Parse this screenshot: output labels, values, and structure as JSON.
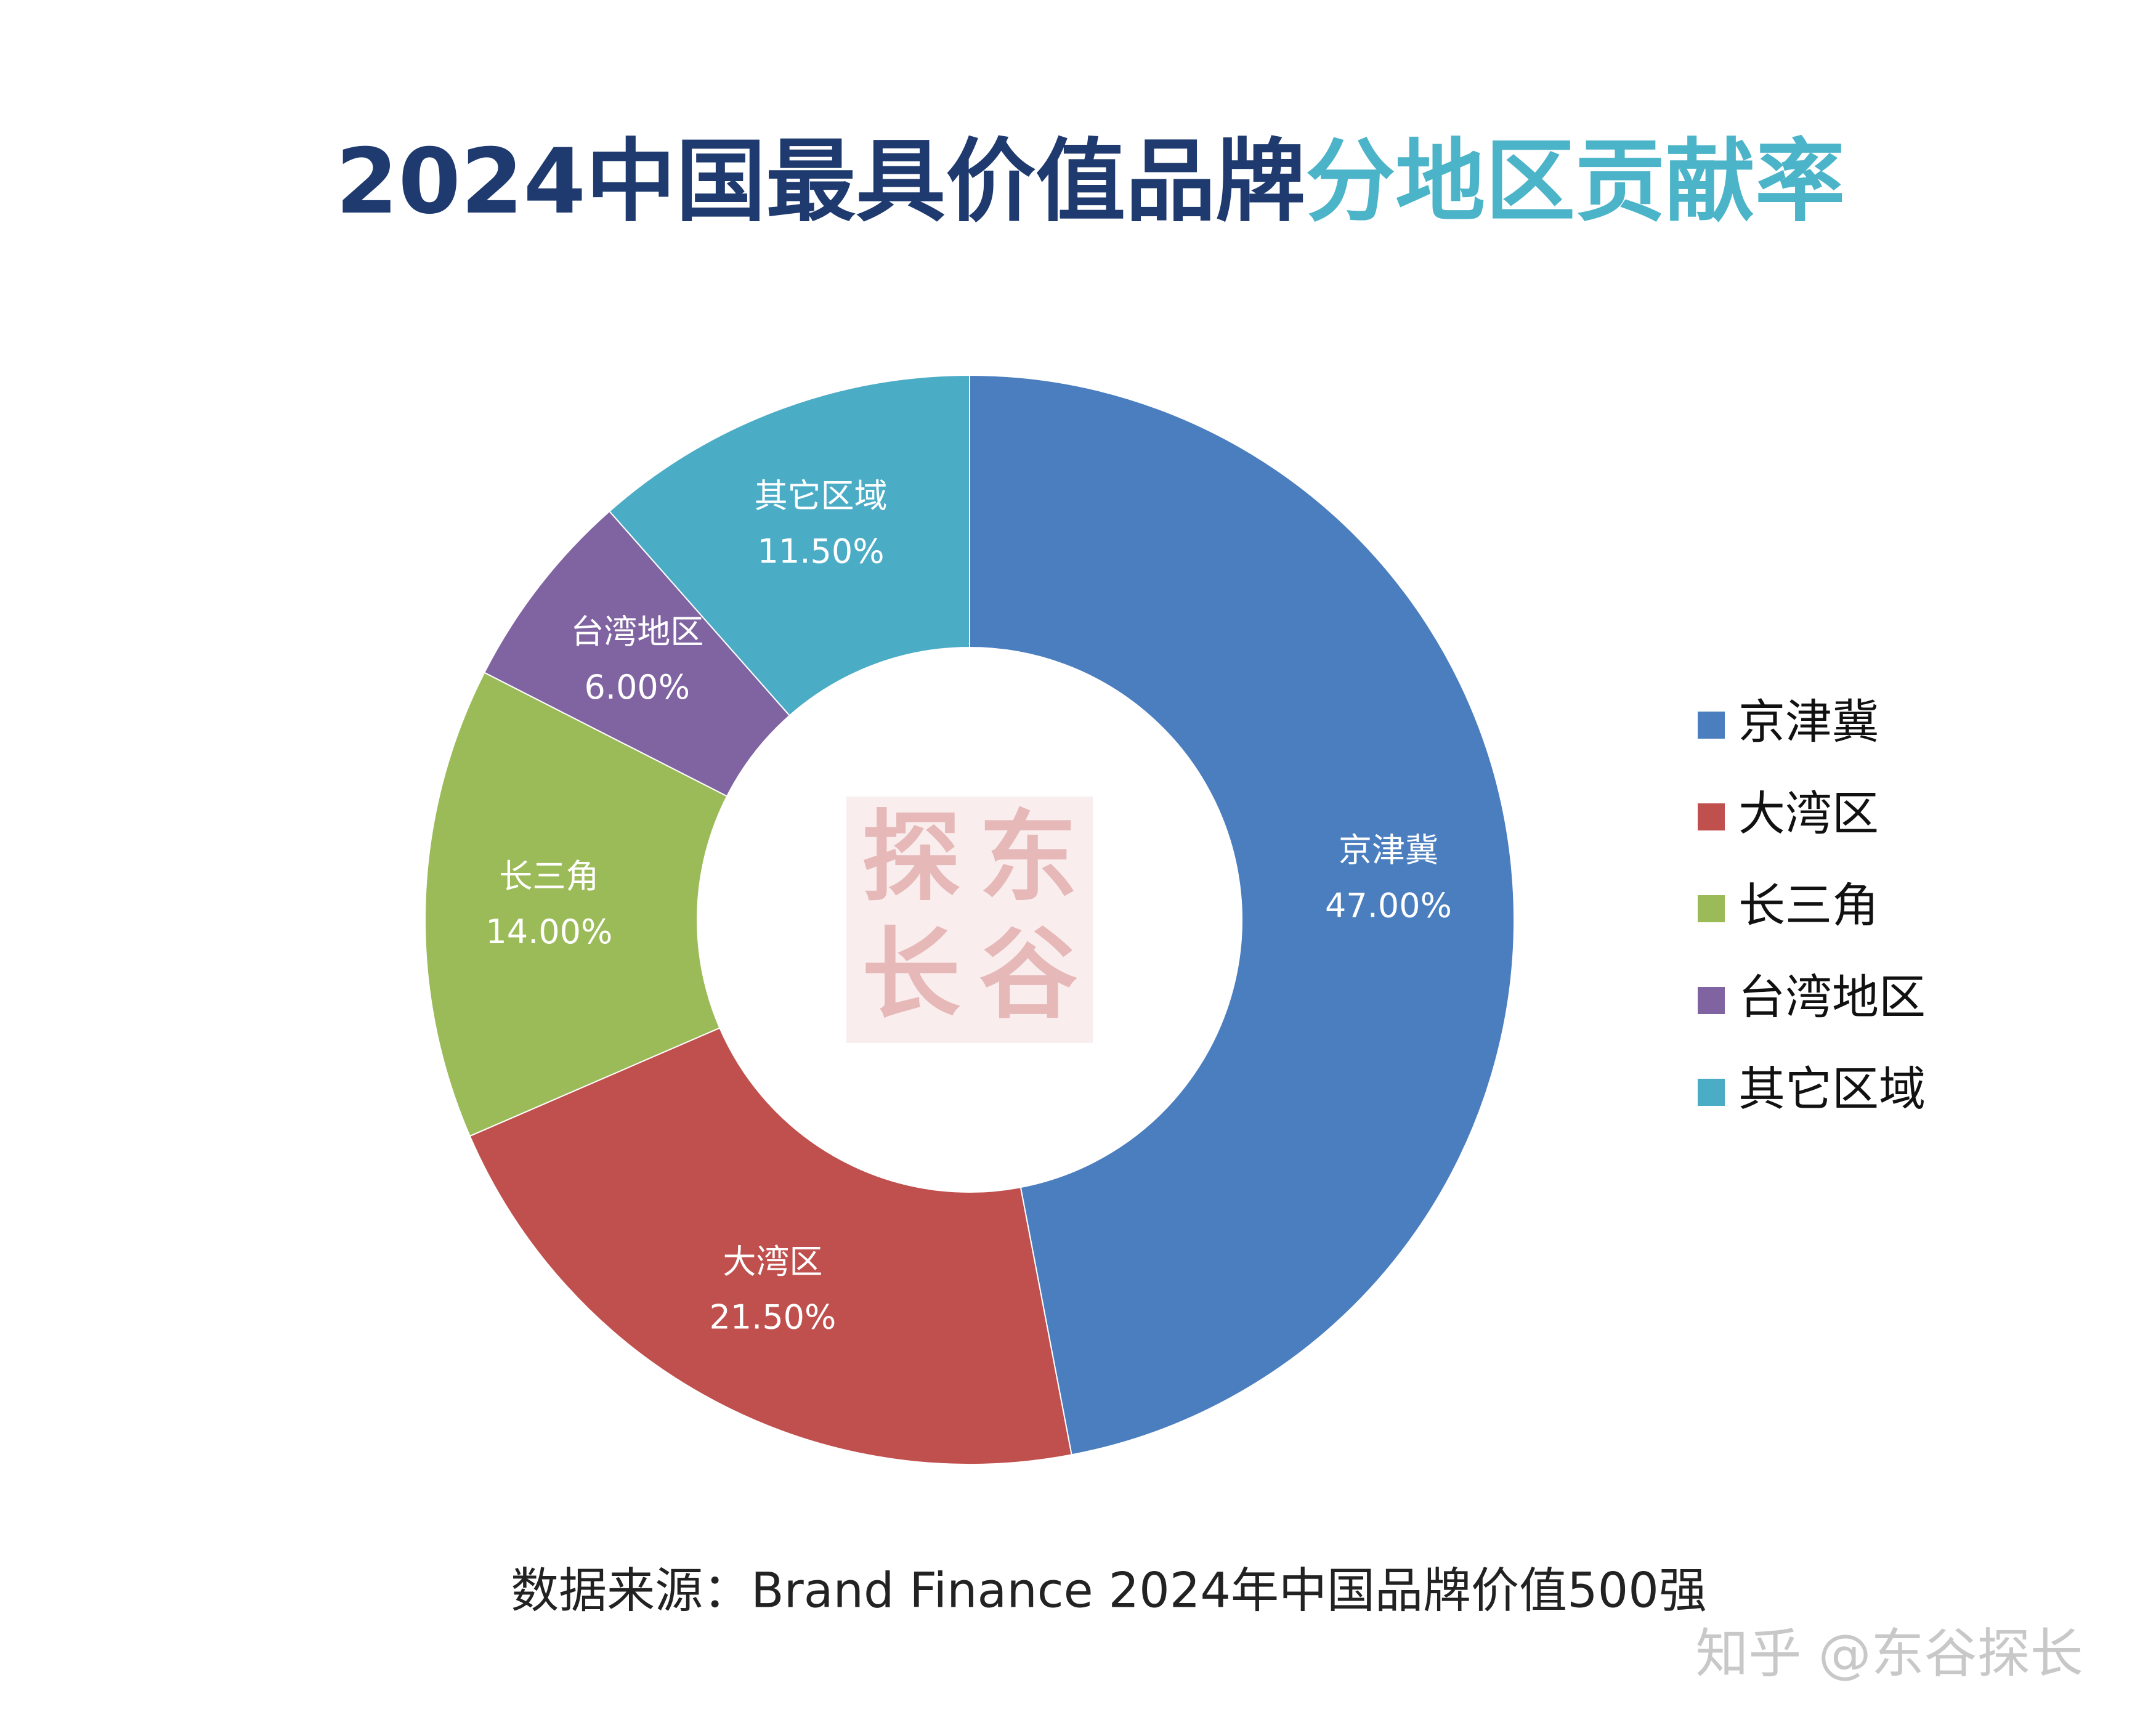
{
  "chart_data": {
    "type": "donut",
    "title_parts": [
      "2024中国最具价值品牌",
      "分地区贡献率"
    ],
    "title_colors": [
      "#1f3a6e",
      "#4bb4c8"
    ],
    "categories": [
      "京津冀",
      "大湾区",
      "长三角",
      "台湾地区",
      "其它区域"
    ],
    "values": [
      47,
      21.5,
      14,
      6,
      11.5
    ],
    "value_labels": [
      "47.00%",
      "21.50%",
      "14.00%",
      "6.00%",
      "11.50%"
    ],
    "colors": [
      "#4a7ebf",
      "#c0504d",
      "#9bbb59",
      "#8064a2",
      "#4bacc6"
    ],
    "legend": "right",
    "source": "数据来源：Brand Finance 2024年中国品牌价值500强",
    "stamp": [
      "探",
      "东",
      "长",
      "谷"
    ],
    "watermark": "知乎 @东谷探长"
  }
}
